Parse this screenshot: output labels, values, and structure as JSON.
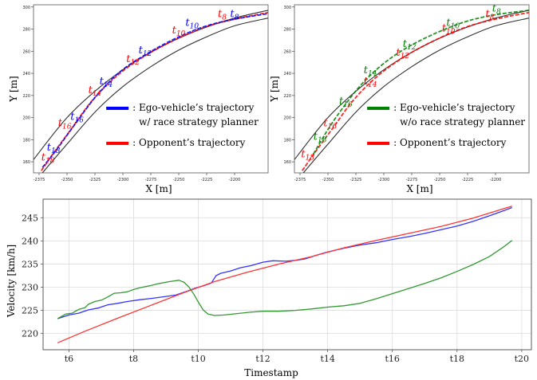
{
  "chart_data": [
    {
      "type": "line",
      "title": "",
      "xlabel": "X [m]",
      "ylabel": "Y [m]",
      "xlim": [
        -2380,
        -2170
      ],
      "ylim": [
        150,
        302
      ],
      "x_ticks": [
        -2375,
        -2350,
        -2325,
        -2300,
        -2275,
        -2250,
        -2225,
        -2200
      ],
      "y_ticks": [
        160,
        180,
        200,
        220,
        240,
        260,
        280,
        300
      ],
      "grid": false,
      "legend_position": "bottom-right",
      "colors": {
        "ego": "#0000ff",
        "opponent": "#ff0000",
        "track": "#303030"
      },
      "legend": [
        {
          "line1": ": Ego-vehicle’s trajectory",
          "line2": "w/ race strategy planner",
          "color": "#0000ff"
        },
        {
          "line1": ": Opponent’s trajectory",
          "line2": "",
          "color": "#ff0000"
        }
      ],
      "track_outer": {
        "x": [
          -2380,
          -2350,
          -2320,
          -2290,
          -2260,
          -2230,
          -2200,
          -2170
        ],
        "y": [
          162,
          200,
          228,
          250,
          267,
          280,
          290,
          297
        ]
      },
      "track_inner": {
        "x": [
          -2372,
          -2350,
          -2325,
          -2300,
          -2275,
          -2250,
          -2225,
          -2200,
          -2170
        ],
        "y": [
          150,
          176,
          205,
          228,
          246,
          261,
          273,
          283,
          290
        ]
      },
      "series": [
        {
          "key": "ego",
          "x": [
            -2372,
            -2360,
            -2345,
            -2325,
            -2303,
            -2278,
            -2250,
            -2225,
            -2200,
            -2170
          ],
          "y": [
            155,
            170,
            191,
            218,
            241,
            258,
            273,
            283,
            289,
            294
          ]
        },
        {
          "key": "opponent",
          "x": [
            -2373,
            -2362,
            -2346,
            -2327,
            -2305,
            -2280,
            -2252,
            -2226,
            -2200,
            -2170
          ],
          "y": [
            152,
            168,
            190,
            216,
            238,
            256,
            271,
            282,
            289,
            295
          ]
        }
      ],
      "annotations": [
        {
          "base": "t",
          "sub": "18",
          "x": -2368,
          "y": 170,
          "color": "#0000ff"
        },
        {
          "base": "t",
          "sub": "16",
          "x": -2347,
          "y": 198,
          "color": "#0000ff"
        },
        {
          "base": "t",
          "sub": "14",
          "x": -2321,
          "y": 230,
          "color": "#0000ff"
        },
        {
          "base": "t",
          "sub": "12",
          "x": -2286,
          "y": 258,
          "color": "#0000ff"
        },
        {
          "base": "t",
          "sub": "10",
          "x": -2244,
          "y": 283,
          "color": "#0000ff"
        },
        {
          "base": "t",
          "sub": "8",
          "x": -2204,
          "y": 291,
          "color": "#0000ff"
        },
        {
          "base": "t",
          "sub": "18",
          "x": -2373,
          "y": 161,
          "color": "#ff0000"
        },
        {
          "base": "t",
          "sub": "16",
          "x": -2358,
          "y": 192,
          "color": "#ff0000"
        },
        {
          "base": "t",
          "sub": "14",
          "x": -2331,
          "y": 222,
          "color": "#ff0000"
        },
        {
          "base": "t",
          "sub": "12",
          "x": -2297,
          "y": 250,
          "color": "#ff0000"
        },
        {
          "base": "t",
          "sub": "10",
          "x": -2256,
          "y": 276,
          "color": "#ff0000"
        },
        {
          "base": "t",
          "sub": "8",
          "x": -2215,
          "y": 291,
          "color": "#ff0000"
        }
      ]
    },
    {
      "type": "line",
      "title": "",
      "xlabel": "X [m]",
      "ylabel": "Y [m]",
      "xlim": [
        -2380,
        -2170
      ],
      "ylim": [
        150,
        302
      ],
      "x_ticks": [
        -2375,
        -2350,
        -2325,
        -2300,
        -2275,
        -2250,
        -2225,
        -2200
      ],
      "y_ticks": [
        160,
        180,
        200,
        220,
        240,
        260,
        280,
        300
      ],
      "grid": false,
      "legend_position": "bottom-right",
      "colors": {
        "ego": "#008000",
        "opponent": "#ff0000",
        "track": "#303030"
      },
      "legend": [
        {
          "line1": ": Ego-vehicle’s trajectory",
          "line2": "w/o race strategy planner",
          "color": "#008000"
        },
        {
          "line1": ": Opponent’s trajectory",
          "line2": "",
          "color": "#ff0000"
        }
      ],
      "track_outer": {
        "x": [
          -2380,
          -2350,
          -2320,
          -2290,
          -2260,
          -2230,
          -2200,
          -2170
        ],
        "y": [
          162,
          200,
          228,
          250,
          267,
          280,
          290,
          297
        ]
      },
      "track_inner": {
        "x": [
          -2372,
          -2350,
          -2325,
          -2300,
          -2275,
          -2250,
          -2225,
          -2200,
          -2170
        ],
        "y": [
          150,
          176,
          205,
          228,
          246,
          261,
          273,
          283,
          290
        ]
      },
      "series": [
        {
          "key": "ego",
          "x": [
            -2363,
            -2352,
            -2338,
            -2320,
            -2300,
            -2278,
            -2252,
            -2226,
            -2200,
            -2170
          ],
          "y": [
            167,
            186,
            207,
            230,
            249,
            264,
            277,
            287,
            293,
            297
          ]
        },
        {
          "key": "opponent",
          "x": [
            -2373,
            -2362,
            -2346,
            -2327,
            -2305,
            -2280,
            -2252,
            -2226,
            -2200,
            -2170
          ],
          "y": [
            152,
            168,
            190,
            216,
            238,
            256,
            271,
            282,
            289,
            295
          ]
        }
      ],
      "annotations": [
        {
          "base": "t",
          "sub": "18",
          "x": -2363,
          "y": 180,
          "color": "#008000"
        },
        {
          "base": "t",
          "sub": "16",
          "x": -2340,
          "y": 212,
          "color": "#008000"
        },
        {
          "base": "t",
          "sub": "14",
          "x": -2318,
          "y": 240,
          "color": "#008000"
        },
        {
          "base": "t",
          "sub": "12",
          "x": -2283,
          "y": 264,
          "color": "#008000"
        },
        {
          "base": "t",
          "sub": "10",
          "x": -2244,
          "y": 283,
          "color": "#008000"
        },
        {
          "base": "t",
          "sub": "8",
          "x": -2203,
          "y": 296,
          "color": "#008000"
        },
        {
          "base": "t",
          "sub": "18",
          "x": -2374,
          "y": 164,
          "color": "#ff0000"
        },
        {
          "base": "t",
          "sub": "16",
          "x": -2354,
          "y": 192,
          "color": "#ff0000"
        },
        {
          "base": "t",
          "sub": "14",
          "x": -2318,
          "y": 230,
          "color": "#ff0000"
        },
        {
          "base": "t",
          "sub": "12",
          "x": -2289,
          "y": 256,
          "color": "#ff0000"
        },
        {
          "base": "t",
          "sub": "10",
          "x": -2248,
          "y": 278,
          "color": "#ff0000"
        },
        {
          "base": "t",
          "sub": "8",
          "x": -2209,
          "y": 291,
          "color": "#ff0000"
        }
      ]
    },
    {
      "type": "line",
      "title": "",
      "xlabel": "Timestamp",
      "ylabel": "Velocity [km/h]",
      "xlim": [
        5.2,
        20.3
      ],
      "ylim": [
        216.5,
        249
      ],
      "x_ticks": [
        6,
        8,
        10,
        12,
        14,
        16,
        18,
        20
      ],
      "x_tick_labels": [
        "t6",
        "t8",
        "t10",
        "t12",
        "t14",
        "t16",
        "t18",
        "t20"
      ],
      "y_ticks": [
        220,
        225,
        230,
        235,
        240,
        245
      ],
      "grid": true,
      "series": [
        {
          "key": "blue",
          "color": "#3333ff",
          "x": [
            5.65,
            6.0,
            6.3,
            6.6,
            6.9,
            7.2,
            7.5,
            7.8,
            8.2,
            8.6,
            9.0,
            9.3,
            9.6,
            9.9,
            10.2,
            10.4,
            10.55,
            10.7,
            11.0,
            11.3,
            11.6,
            12.0,
            12.3,
            12.7,
            13.0,
            13.3,
            13.7,
            14.0,
            14.5,
            15.0,
            15.5,
            16.0,
            16.5,
            17.0,
            17.5,
            18.0,
            18.5,
            19.0,
            19.4,
            19.7
          ],
          "y": [
            223.2,
            224.0,
            224.4,
            225.1,
            225.5,
            226.2,
            226.5,
            226.9,
            227.3,
            227.6,
            228.0,
            228.3,
            229.0,
            229.8,
            230.4,
            230.9,
            232.5,
            233.0,
            233.5,
            234.2,
            234.6,
            235.4,
            235.7,
            235.6,
            235.8,
            236.1,
            237.0,
            237.6,
            238.4,
            239.1,
            239.6,
            240.3,
            240.9,
            241.6,
            242.4,
            243.2,
            244.2,
            245.4,
            246.4,
            247.2
          ]
        },
        {
          "key": "red",
          "color": "#ff3333",
          "x": [
            5.65,
            6.5,
            7.5,
            8.5,
            9.5,
            10.5,
            11.5,
            12.5,
            13.5,
            14.5,
            15.5,
            16.5,
            17.5,
            18.5,
            19.7
          ],
          "y": [
            218.0,
            220.5,
            223.3,
            226.0,
            228.7,
            231.2,
            233.2,
            235.0,
            236.6,
            238.5,
            240.1,
            241.6,
            243.1,
            244.9,
            247.5
          ]
        },
        {
          "key": "green",
          "color": "#339933",
          "x": [
            5.65,
            5.9,
            6.1,
            6.3,
            6.5,
            6.6,
            6.8,
            7.0,
            7.2,
            7.4,
            7.6,
            7.8,
            8.0,
            8.2,
            8.5,
            8.8,
            9.1,
            9.4,
            9.55,
            9.7,
            9.85,
            10.0,
            10.15,
            10.3,
            10.5,
            10.8,
            11.2,
            11.6,
            12.0,
            12.5,
            13.0,
            13.5,
            14.0,
            14.5,
            15.0,
            15.5,
            16.0,
            16.5,
            17.0,
            17.5,
            18.0,
            18.5,
            19.0,
            19.4,
            19.7
          ],
          "y": [
            223.2,
            224.2,
            224.4,
            225.2,
            225.6,
            226.3,
            226.9,
            227.2,
            227.9,
            228.7,
            228.8,
            229.0,
            229.5,
            229.9,
            230.3,
            230.8,
            231.2,
            231.5,
            231.1,
            230.1,
            228.6,
            226.8,
            225.1,
            224.2,
            223.9,
            224.0,
            224.3,
            224.6,
            224.8,
            224.8,
            225.0,
            225.3,
            225.7,
            226.0,
            226.5,
            227.5,
            228.6,
            229.7,
            230.8,
            232.0,
            233.4,
            234.9,
            236.6,
            238.5,
            240.1
          ]
        }
      ]
    }
  ]
}
